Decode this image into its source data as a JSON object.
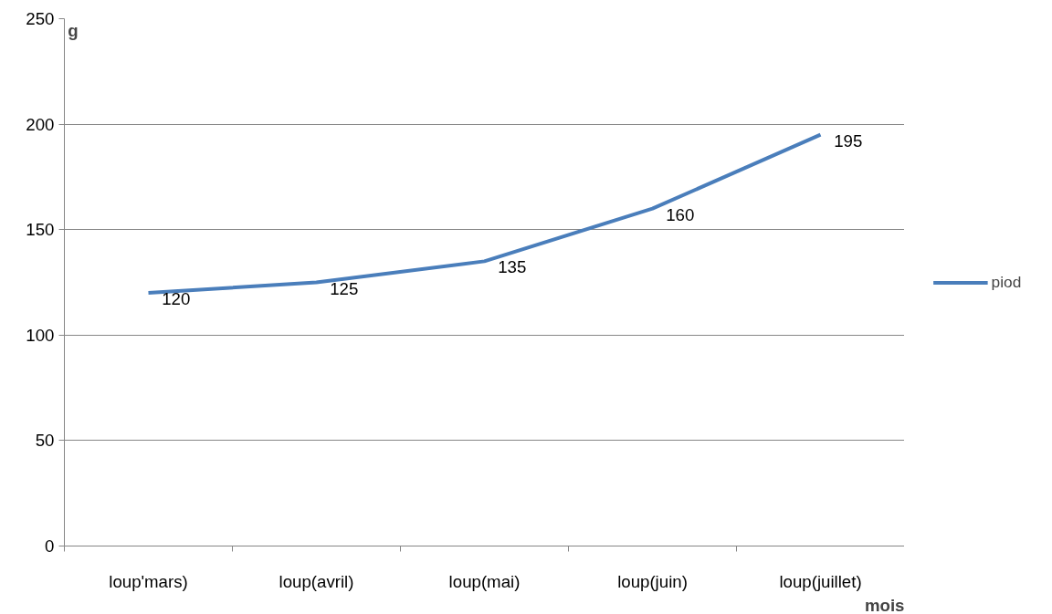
{
  "chart_data": {
    "type": "line",
    "xlabel": "mois",
    "ylabel": "g",
    "categories": [
      "loup'mars)",
      "loup(avril)",
      "loup(mai)",
      "loup(juin)",
      "loup(juillet)"
    ],
    "series": [
      {
        "name": "piod",
        "color": "#4a7ebb",
        "values": [
          120,
          125,
          135,
          160,
          195
        ]
      }
    ],
    "ylim": [
      0,
      250
    ],
    "yticks": [
      0,
      50,
      100,
      150,
      200,
      250
    ],
    "grid": "y",
    "legend": "right",
    "data_labels": true,
    "line_style": "solid"
  }
}
